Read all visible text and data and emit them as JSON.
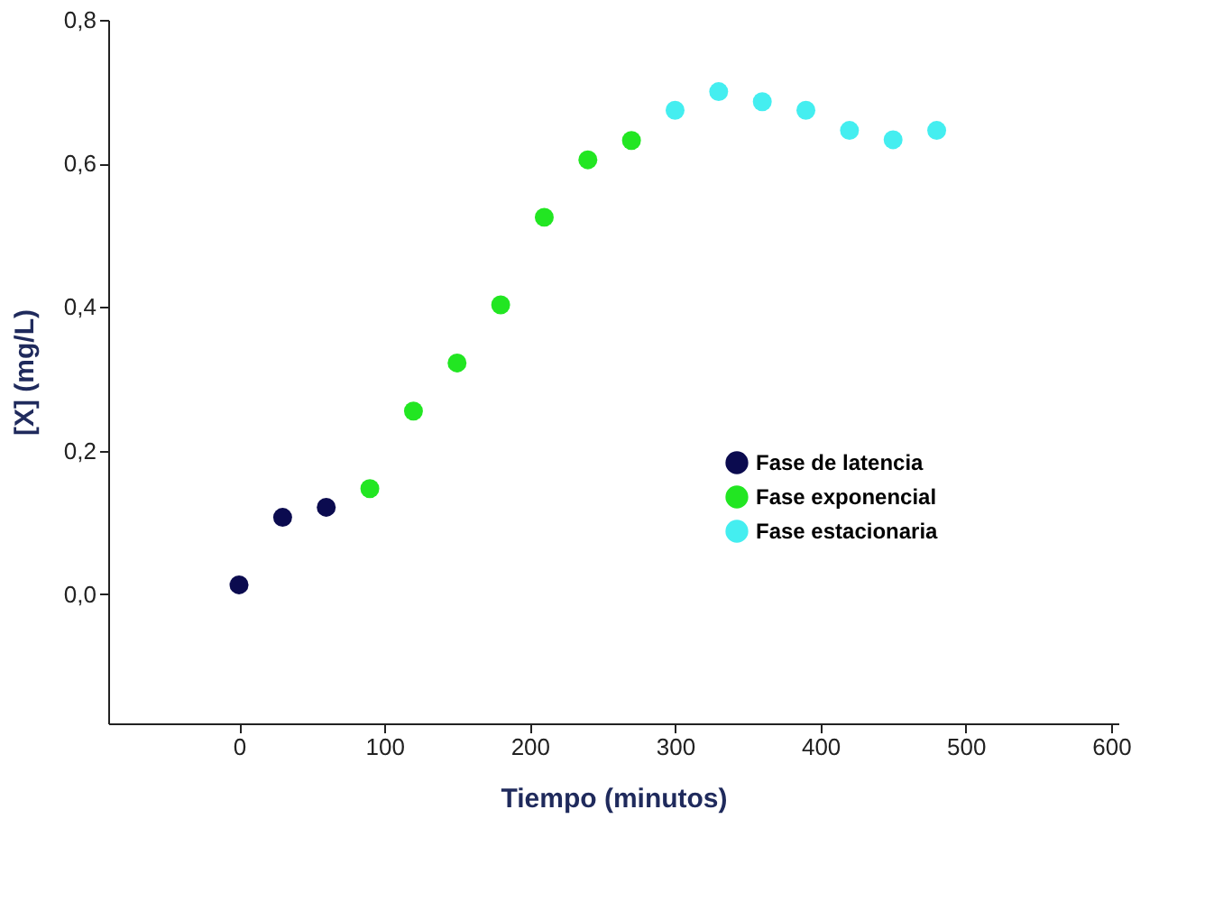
{
  "chart_data": {
    "type": "scatter",
    "xlabel": "Tiempo (minutos)",
    "ylabel": "[X] (mg/L)",
    "series": [
      {
        "name": "Fase de latencia",
        "color": "#0b0b4f",
        "x": [
          0,
          30,
          60
        ],
        "values": [
          0.013,
          0.107,
          0.121
        ]
      },
      {
        "name": "Fase exponencial",
        "color": "#22e622",
        "x": [
          90,
          120,
          150,
          180,
          210,
          240,
          270
        ],
        "values": [
          0.147,
          0.255,
          0.322,
          0.403,
          0.525,
          0.605,
          0.632
        ]
      },
      {
        "name": "Fase estacionaria",
        "color": "#44eef0",
        "x": [
          300,
          330,
          360,
          390,
          420,
          450,
          480
        ],
        "values": [
          0.674,
          0.7,
          0.686,
          0.674,
          0.646,
          0.633,
          0.646
        ]
      }
    ],
    "xlim": [
      -90,
      605
    ],
    "ylim": [
      -0.18,
      0.8
    ],
    "xticks": [
      0,
      100,
      200,
      300,
      400,
      500,
      600
    ],
    "yticks": [
      {
        "value": 0,
        "label": "0,0"
      },
      {
        "value": 0.2,
        "label": "0,2"
      },
      {
        "value": 0.4,
        "label": "0,4"
      },
      {
        "value": 0.6,
        "label": "0,6"
      },
      {
        "value": 0.8,
        "label": "0,8"
      }
    ],
    "grid": false,
    "legend": "bottom right",
    "marker": "circle"
  }
}
